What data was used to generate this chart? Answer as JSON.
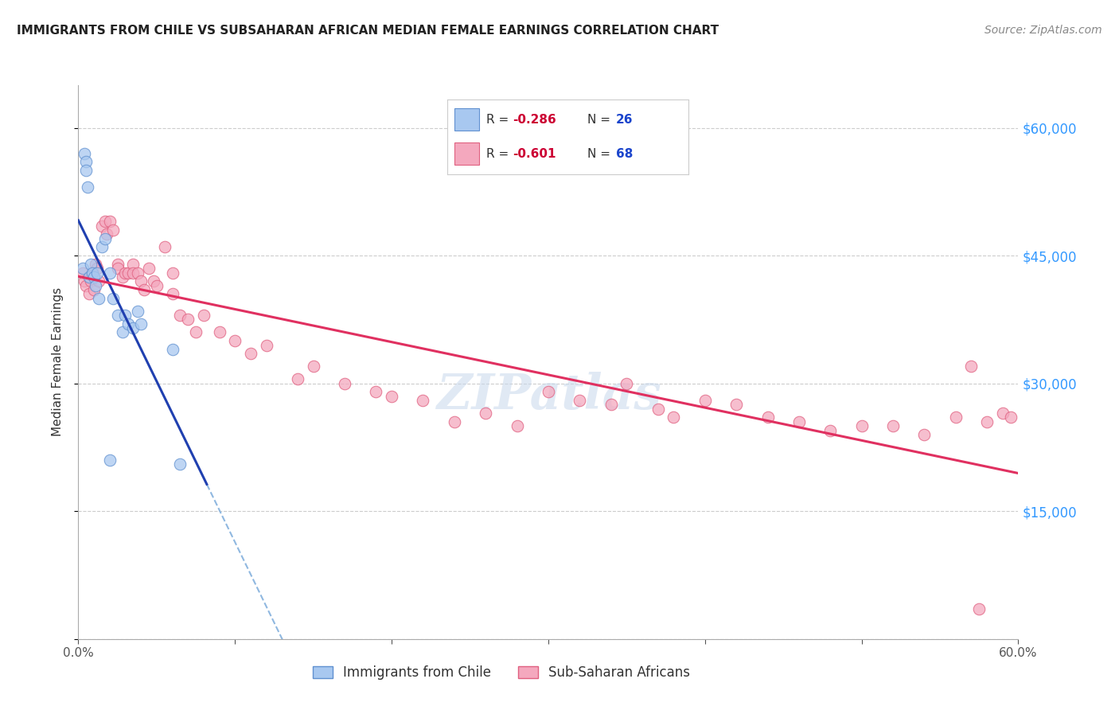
{
  "title": "IMMIGRANTS FROM CHILE VS SUBSAHARAN AFRICAN MEDIAN FEMALE EARNINGS CORRELATION CHART",
  "source": "Source: ZipAtlas.com",
  "ylabel": "Median Female Earnings",
  "xlim": [
    0,
    0.6
  ],
  "ylim": [
    0,
    65000
  ],
  "chile_color": "#a8c8f0",
  "africa_color": "#f4a8be",
  "chile_edge": "#6090d0",
  "africa_edge": "#e06080",
  "trend_chile_color": "#2040b0",
  "trend_africa_color": "#e03060",
  "dashed_color": "#90b8e0",
  "background_color": "#ffffff",
  "watermark": "ZIPatlas",
  "chile_x": [
    0.003,
    0.004,
    0.005,
    0.005,
    0.006,
    0.007,
    0.008,
    0.009,
    0.01,
    0.011,
    0.012,
    0.013,
    0.015,
    0.017,
    0.02,
    0.022,
    0.025,
    0.028,
    0.03,
    0.032,
    0.035,
    0.038,
    0.04,
    0.06,
    0.065,
    0.02
  ],
  "chile_y": [
    43500,
    57000,
    56000,
    55000,
    53000,
    42500,
    44000,
    43000,
    42500,
    41500,
    43000,
    40000,
    46000,
    47000,
    43000,
    40000,
    38000,
    36000,
    38000,
    37000,
    36500,
    38500,
    37000,
    34000,
    20500,
    21000
  ],
  "africa_x": [
    0.003,
    0.004,
    0.005,
    0.007,
    0.008,
    0.009,
    0.01,
    0.011,
    0.012,
    0.013,
    0.015,
    0.017,
    0.018,
    0.02,
    0.022,
    0.025,
    0.025,
    0.028,
    0.03,
    0.032,
    0.035,
    0.035,
    0.038,
    0.04,
    0.042,
    0.045,
    0.048,
    0.05,
    0.055,
    0.06,
    0.06,
    0.065,
    0.07,
    0.075,
    0.08,
    0.09,
    0.1,
    0.11,
    0.12,
    0.14,
    0.15,
    0.17,
    0.19,
    0.2,
    0.22,
    0.24,
    0.26,
    0.28,
    0.3,
    0.32,
    0.34,
    0.35,
    0.37,
    0.38,
    0.4,
    0.42,
    0.44,
    0.46,
    0.48,
    0.5,
    0.52,
    0.54,
    0.56,
    0.57,
    0.575,
    0.58,
    0.59,
    0.595
  ],
  "africa_y": [
    43000,
    42000,
    41500,
    40500,
    42000,
    43000,
    41000,
    44000,
    43500,
    42000,
    48500,
    49000,
    47500,
    49000,
    48000,
    44000,
    43500,
    42500,
    43000,
    43000,
    44000,
    43000,
    43000,
    42000,
    41000,
    43500,
    42000,
    41500,
    46000,
    43000,
    40500,
    38000,
    37500,
    36000,
    38000,
    36000,
    35000,
    33500,
    34500,
    30500,
    32000,
    30000,
    29000,
    28500,
    28000,
    25500,
    26500,
    25000,
    29000,
    28000,
    27500,
    30000,
    27000,
    26000,
    28000,
    27500,
    26000,
    25500,
    24500,
    25000,
    25000,
    24000,
    26000,
    32000,
    3500,
    25500,
    26500,
    26000
  ]
}
